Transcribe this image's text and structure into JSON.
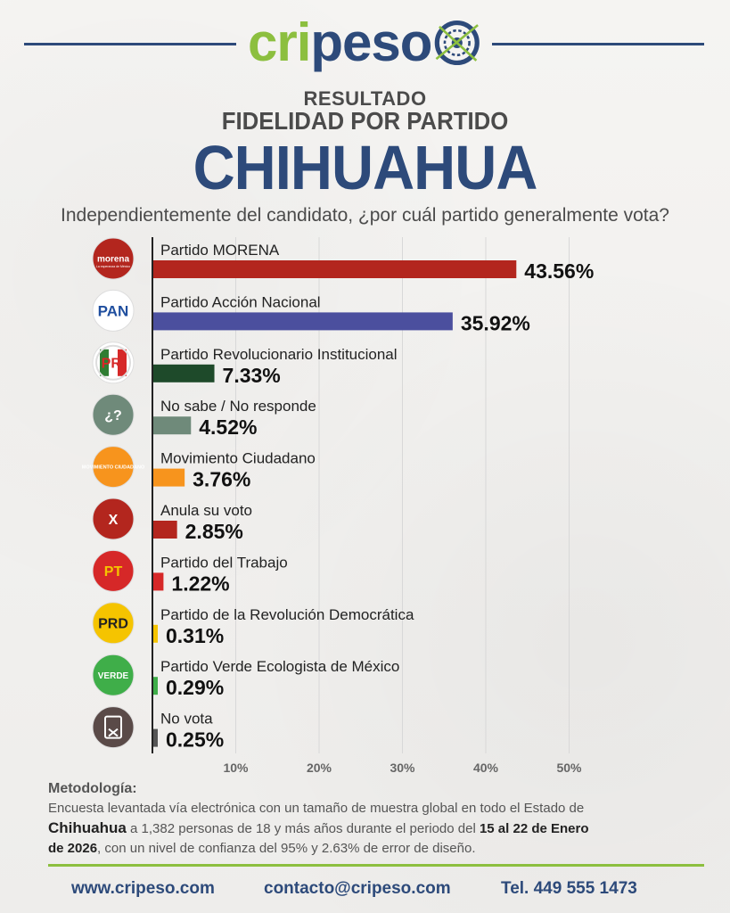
{
  "header": {
    "logo_left": "cri",
    "logo_right": "peso",
    "subtitle1": "RESULTADO",
    "subtitle2": "FIDELIDAD POR PARTIDO",
    "title": "CHIHUAHUA",
    "question": "Independientemente del candidato, ¿por cuál partido generalmente vota?"
  },
  "chart_data": {
    "type": "bar",
    "orientation": "horizontal",
    "categories": [
      "Partido MORENA",
      "Partido Acción Nacional",
      "Partido Revolucionario Institucional",
      "No sabe / No responde",
      "Movimiento Ciudadano",
      "Anula su voto",
      "Partido del Trabajo",
      "Partido de la Revolución Democrática",
      "Partido Verde Ecologista de México",
      "No vota"
    ],
    "values": [
      43.56,
      35.92,
      7.33,
      4.52,
      3.76,
      2.85,
      1.22,
      0.31,
      0.29,
      0.25
    ],
    "value_labels": [
      "43.56%",
      "35.92%",
      "7.33%",
      "4.52%",
      "3.76%",
      "2.85%",
      "1.22%",
      "0.31%",
      "0.29%",
      "0.25%"
    ],
    "colors": [
      "#b3261e",
      "#4b4f9e",
      "#1e4a2a",
      "#6f8a7a",
      "#f7941d",
      "#b3261e",
      "#d62828",
      "#f5c400",
      "#3fae49",
      "#555555"
    ],
    "xticks": [
      "10%",
      "20%",
      "30%",
      "40%",
      "50%"
    ],
    "xlim": [
      0,
      50
    ],
    "grid": true,
    "icons": [
      {
        "name": "morena-logo-icon",
        "text": "morena",
        "sub": "La esperanza de México",
        "bg": "#b3261e",
        "fg": "#ffffff"
      },
      {
        "name": "pan-logo-icon",
        "text": "PAN",
        "bg": "#ffffff",
        "fg": "#1f4e9e"
      },
      {
        "name": "pri-logo-icon",
        "text": "PRI",
        "bg": "#ffffff",
        "fg": "#d62828"
      },
      {
        "name": "question-mark-icon",
        "text": "¿?",
        "bg": "#6f8a7a",
        "fg": "#ffffff"
      },
      {
        "name": "movimiento-ciudadano-logo-icon",
        "text": "MOVIMIENTO CIUDADANO",
        "bg": "#f7941d",
        "fg": "#ffffff"
      },
      {
        "name": "x-mark-icon",
        "text": "X",
        "bg": "#b3261e",
        "fg": "#ffffff"
      },
      {
        "name": "pt-logo-icon",
        "text": "PT",
        "bg": "#d62828",
        "fg": "#f5c400"
      },
      {
        "name": "prd-logo-icon",
        "text": "PRD",
        "bg": "#f5c400",
        "fg": "#222222"
      },
      {
        "name": "verde-logo-icon",
        "text": "VERDE",
        "bg": "#3fae49",
        "fg": "#ffffff"
      },
      {
        "name": "ballot-box-icon",
        "text": "",
        "bg": "#5a4a48",
        "fg": "#ffffff"
      }
    ]
  },
  "methodology": {
    "title": "Metodología:",
    "line1": "Encuesta levantada vía electrónica con un tamaño de muestra global en todo el Estado de",
    "state": "Chihuahua",
    "line2": " a 1,382 personas de 18 y más años durante el periodo del ",
    "period": "15 al 22 de Enero",
    "year": "de 2026",
    "line3": ", con un nivel de confianza del 95% y 2.63% de error de diseño."
  },
  "footer": {
    "website": "www.cripeso.com",
    "email": "contacto@cripeso.com",
    "phone": "Tel. 449 555 1473"
  },
  "colors": {
    "brand_blue": "#2d4a7a",
    "brand_green": "#8cbf3f"
  }
}
